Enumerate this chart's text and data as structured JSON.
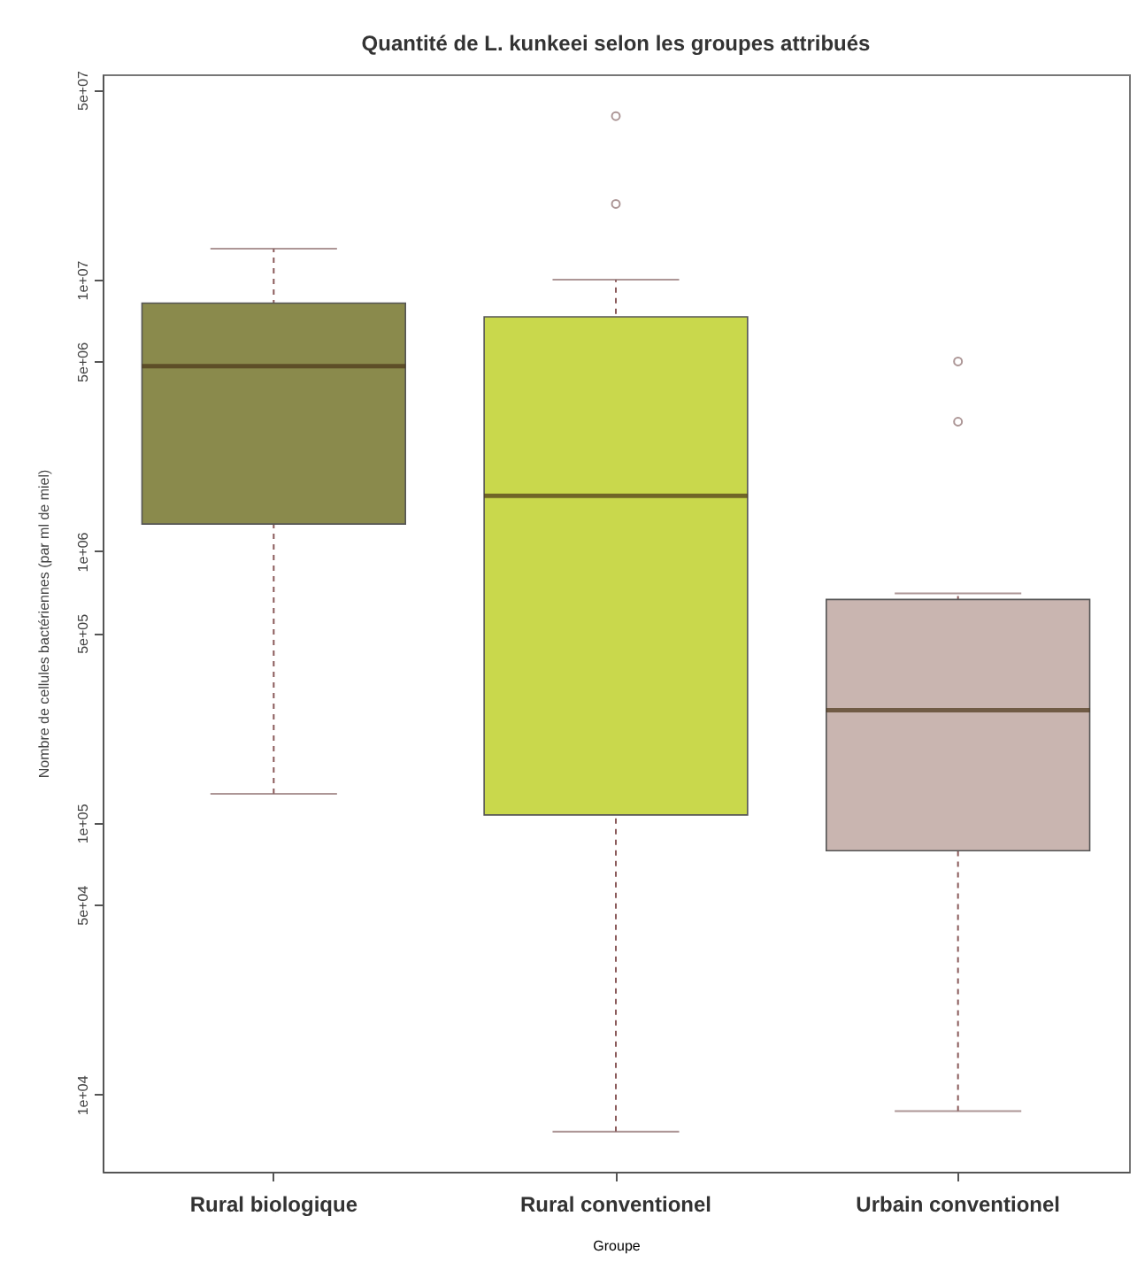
{
  "chart_data": {
    "type": "box",
    "title": "Quantité de L. kunkeei selon les groupes attribués",
    "xlabel": "Groupe",
    "ylabel": "Nombre de cellules bactériennes (par ml de miel)",
    "categories": [
      "Rural biologique",
      "Rural conventionel",
      "Urbain conventionel"
    ],
    "colors": [
      "#8a8a4c",
      "#c9d84c",
      "#c9b5b0"
    ],
    "boxes": [
      {
        "low": 128000,
        "q1": 1260000,
        "median": 4800000,
        "q3": 8200000,
        "high": 13000000
      },
      {
        "low": 7300,
        "q1": 107000,
        "median": 1600000,
        "q3": 7300000,
        "high": 10000000,
        "outliers": [
          40000000,
          19000000
        ]
      },
      {
        "low": 8700,
        "q1": 79000,
        "median": 260000,
        "q3": 665000,
        "high": 700000,
        "outliers": [
          5000000,
          3000000
        ]
      }
    ],
    "log": "y",
    "ylim": [
      5200,
      57000000
    ],
    "yticks": [
      {
        "value": 10000,
        "label": "1e+04"
      },
      {
        "value": 50000,
        "label": "5e+04"
      },
      {
        "value": 100000,
        "label": "1e+05"
      },
      {
        "value": 500000,
        "label": "5e+05"
      },
      {
        "value": 1000000,
        "label": "1e+06"
      },
      {
        "value": 5000000,
        "label": "5e+06"
      },
      {
        "value": 10000000,
        "label": "1e+07"
      },
      {
        "value": 50000000,
        "label": "5e+07"
      }
    ],
    "grid": false
  }
}
